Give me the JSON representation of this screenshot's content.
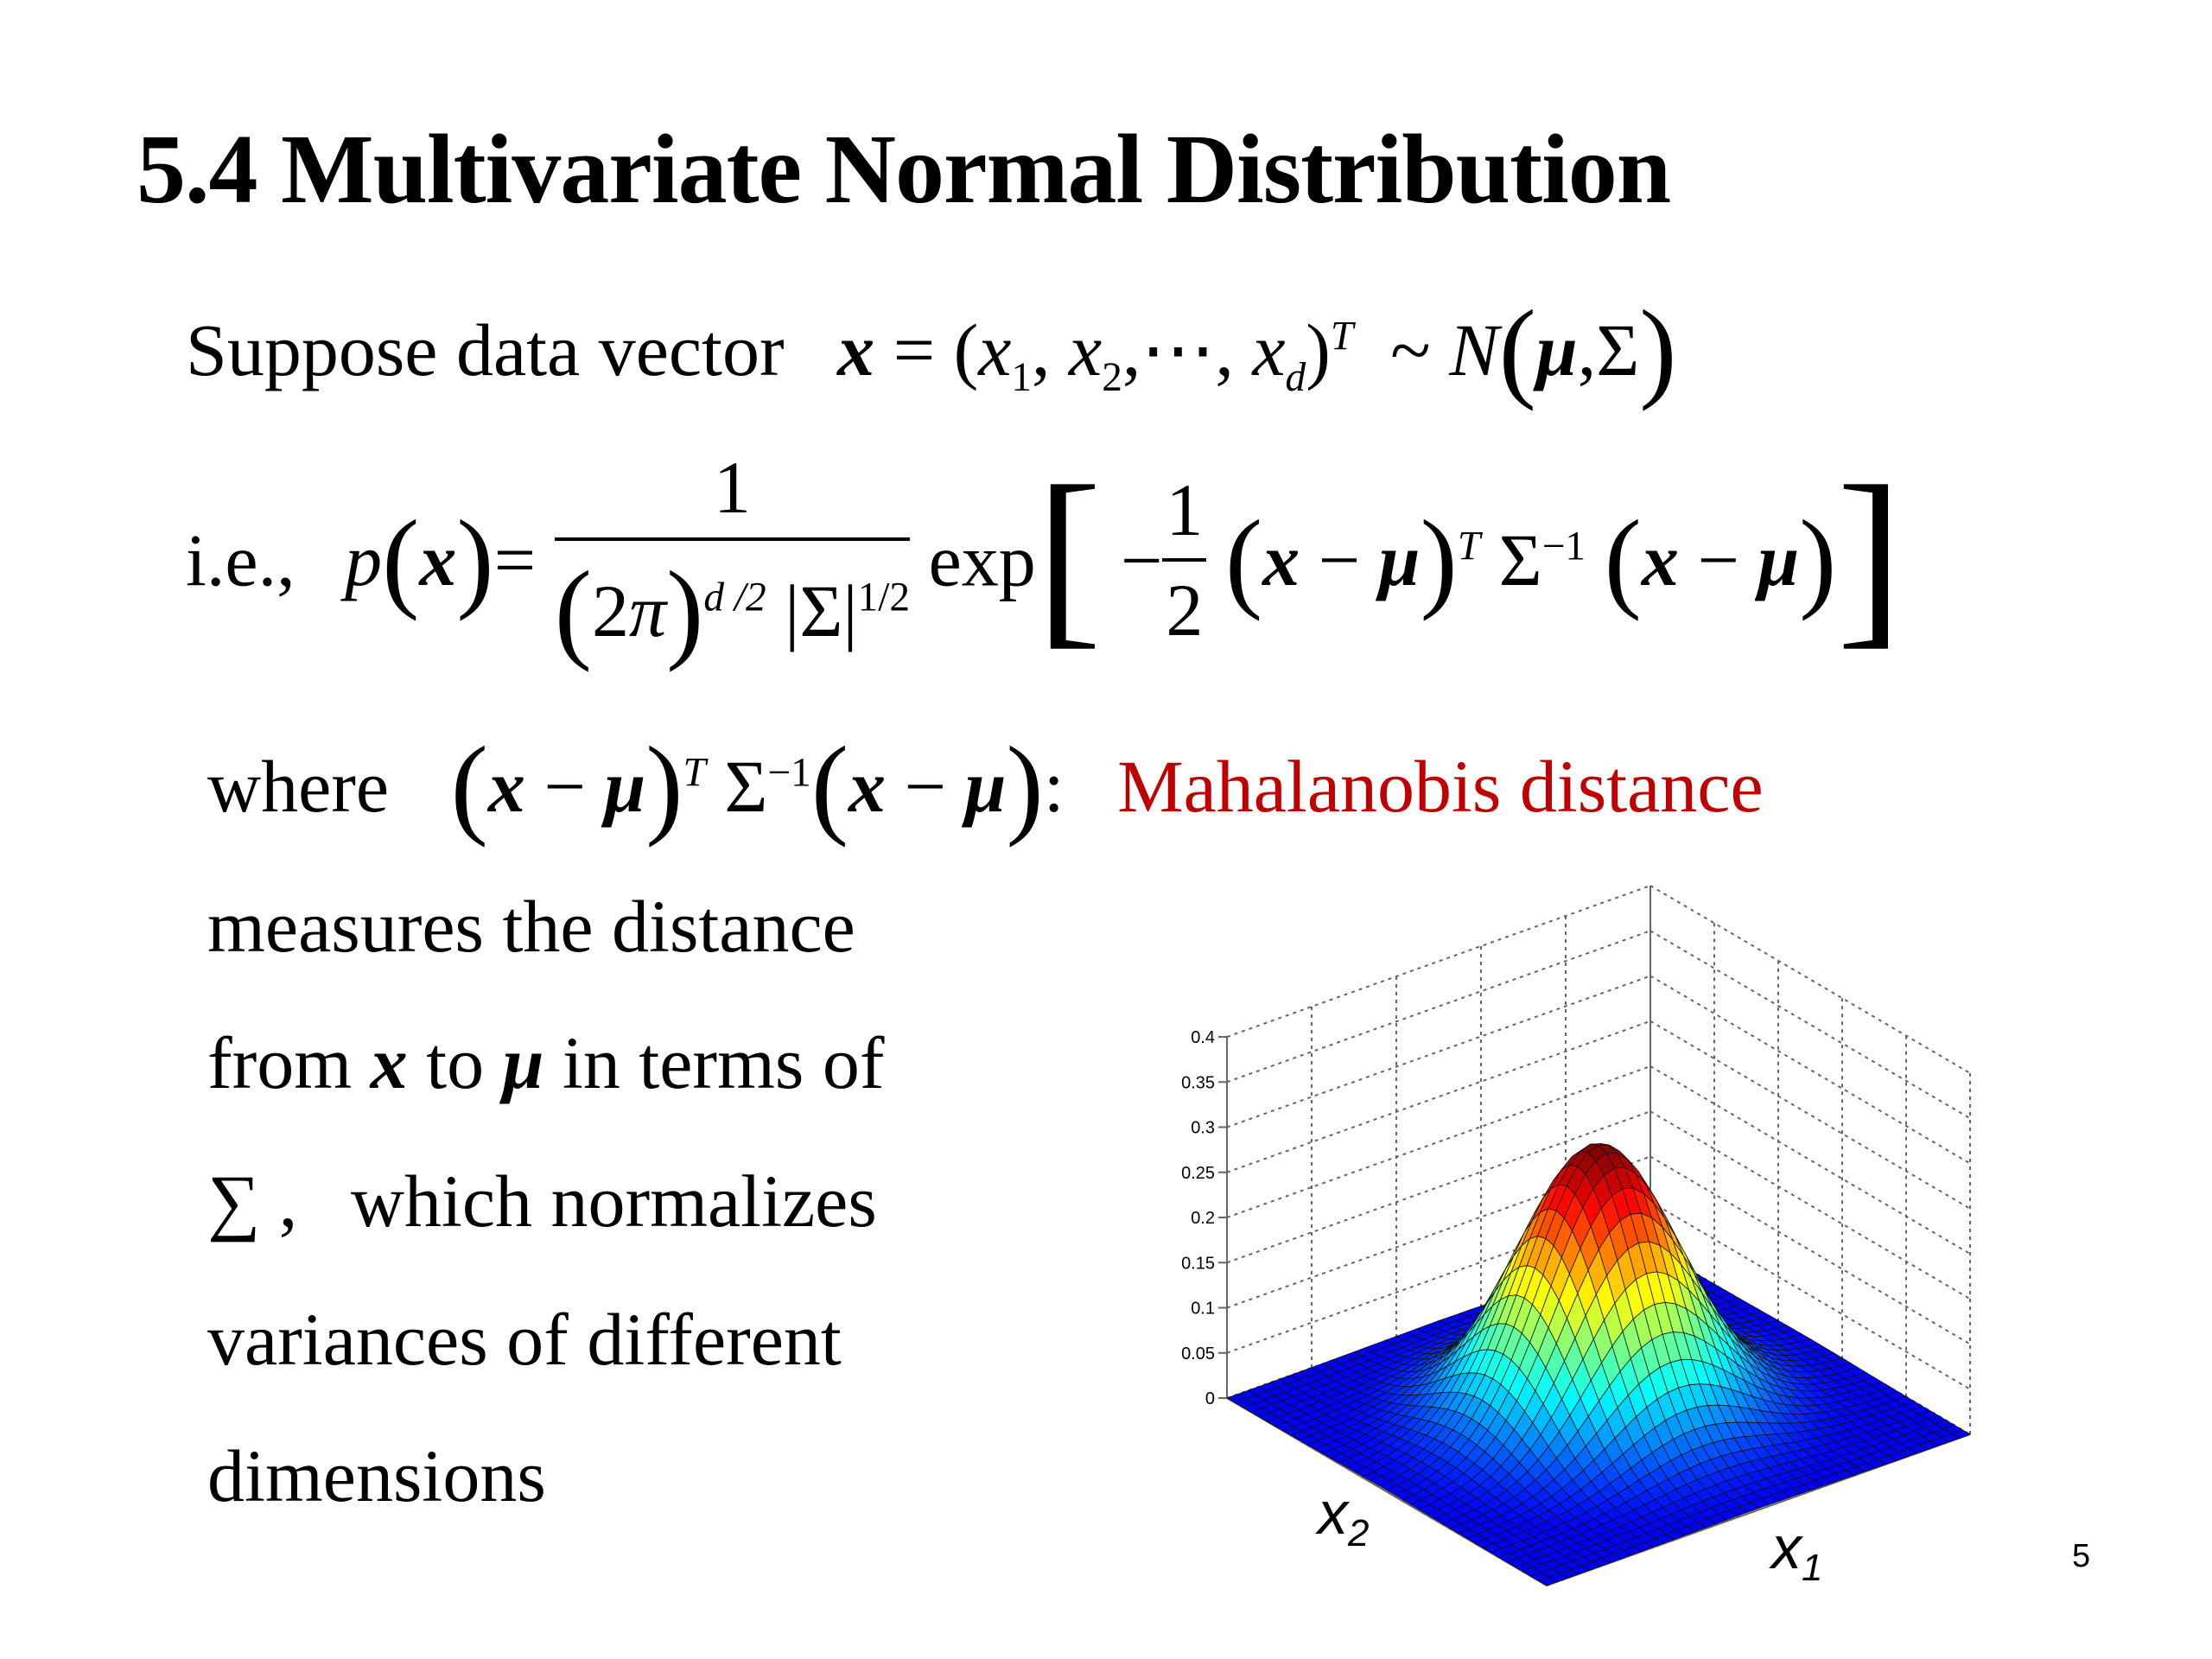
{
  "title": "5.4 Multivariate Normal Distribution",
  "line1": {
    "text": "Suppose data vector",
    "math": "x = (x1, x2, ⋯, xd)^T ~ N(μ, Σ)"
  },
  "line2": {
    "prefix": "i.e.,",
    "math": "p(x) = 1 / ((2π)^{d/2} |Σ|^{1/2}) exp[ −1/2 (x − μ)^T Σ^{-1} (x − μ) ]"
  },
  "line3": {
    "prefix": "where",
    "math": "(x − μ)^T Σ^{-1} (x − μ):",
    "highlight": "Mahalanobis distance"
  },
  "paragraph": {
    "l1": "measures  the distance",
    "l2a": "from",
    "l2b": "to",
    "l2c": "in terms of",
    "l3a": "∑ ,",
    "l3b": "which normalizes",
    "l4": "variances  of  different",
    "l5": "dimensions"
  },
  "chart_data": {
    "type": "surface",
    "xlabel": "x1",
    "ylabel": "x2",
    "z_ticks": [
      "0",
      "0.05",
      "0.1",
      "0.15",
      "0.2",
      "0.25",
      "0.3",
      "0.35",
      "0.4"
    ],
    "zlim": [
      0,
      0.4
    ],
    "peak": 0.3,
    "colormap": "jet"
  },
  "page_number": "5",
  "colors": {
    "highlight": "#c00000"
  }
}
